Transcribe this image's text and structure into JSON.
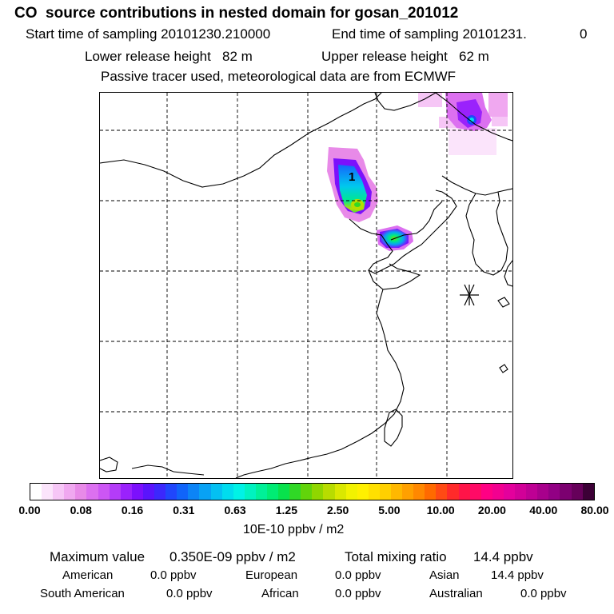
{
  "header": {
    "title": "CO  source contributions in nested domain for gosan_201012",
    "start_time": "Start time of sampling 20101230.210000",
    "end_time": "End time of sampling 20101231.",
    "end_time_tail": "0",
    "lower_release": "Lower release height   82 m",
    "upper_release": "Upper release height   62 m",
    "tracer_note": "Passive tracer used, meteorological data are from ECMWF"
  },
  "map": {
    "plume_label": "1",
    "receptor_symbol": "gosan-station-marker"
  },
  "colorbar": {
    "colors": [
      "#ffffff",
      "#fbe4fb",
      "#f6c6f6",
      "#f0a8f0",
      "#e88ae8",
      "#dc70f0",
      "#cc56f4",
      "#b43cf8",
      "#9a22fc",
      "#7c10fc",
      "#5a14fc",
      "#3c28fc",
      "#2046fc",
      "#1064fa",
      "#0c84f6",
      "#08a2f4",
      "#04c0f2",
      "#00dcee",
      "#00f2e6",
      "#00f2c0",
      "#00f098",
      "#00ec74",
      "#08e24c",
      "#30d826",
      "#62d40a",
      "#90d600",
      "#b8dc00",
      "#dae800",
      "#f2f200",
      "#fff000",
      "#ffe000",
      "#ffd000",
      "#ffb800",
      "#ffa000",
      "#ff8800",
      "#ff6a00",
      "#ff4a14",
      "#ff2a2a",
      "#ff1448",
      "#ff0a66",
      "#ff0084",
      "#f20090",
      "#e4009c",
      "#d20098",
      "#be0094",
      "#a8008c",
      "#920084",
      "#7c0070",
      "#66005a",
      "#3c0036"
    ],
    "ticks": [
      "0.00",
      "0.08",
      "0.16",
      "0.31",
      "0.63",
      "1.25",
      "2.50",
      "5.00",
      "10.00",
      "20.00",
      "40.00",
      "80.00"
    ],
    "unit": "10E-10 ppbv / m2"
  },
  "summary": {
    "max_label": "Maximum value",
    "max_value": "0.350E-09 ppbv / m2",
    "total_label": "Total mixing ratio",
    "total_value": "14.4 ppbv",
    "rows": [
      [
        {
          "label": "American",
          "value": "0.0 ppbv"
        },
        {
          "label": "European",
          "value": "0.0 ppbv"
        },
        {
          "label": "Asian",
          "value": "14.4 ppbv"
        }
      ],
      [
        {
          "label": "South American",
          "value": "0.0 ppbv"
        },
        {
          "label": "African",
          "value": "0.0 ppbv"
        },
        {
          "label": "Australian",
          "value": "0.0 ppbv"
        }
      ]
    ]
  }
}
